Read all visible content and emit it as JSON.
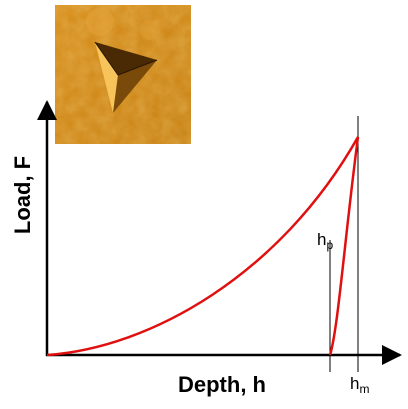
{
  "diagram": {
    "y_axis_label": "Load, F",
    "x_axis_label": "Depth, h",
    "markers": [
      {
        "text": "h",
        "sub": "p"
      },
      {
        "text": "h",
        "sub": "m"
      }
    ]
  }
}
